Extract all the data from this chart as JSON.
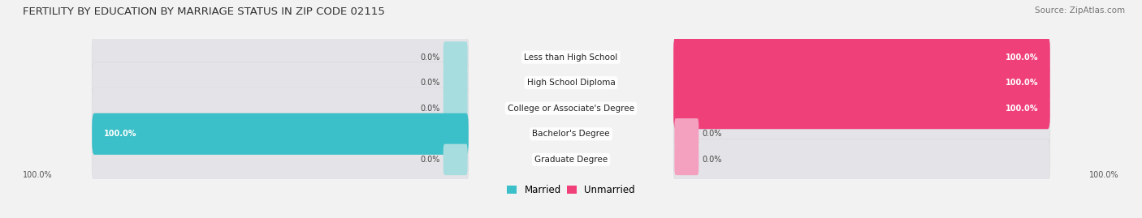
{
  "title": "FERTILITY BY EDUCATION BY MARRIAGE STATUS IN ZIP CODE 02115",
  "source": "Source: ZipAtlas.com",
  "categories": [
    "Less than High School",
    "High School Diploma",
    "College or Associate's Degree",
    "Bachelor's Degree",
    "Graduate Degree"
  ],
  "married": [
    0.0,
    0.0,
    0.0,
    100.0,
    0.0
  ],
  "unmarried": [
    100.0,
    100.0,
    100.0,
    0.0,
    0.0
  ],
  "married_color": "#3bbfc8",
  "married_color_light": "#a8dde0",
  "unmarried_color": "#f0407a",
  "unmarried_color_light": "#f4a0bf",
  "bg_color": "#f2f2f2",
  "bar_bg_color": "#e4e4e8",
  "bar_bg_edge": "#d8d8dc",
  "title_fontsize": 9.5,
  "source_fontsize": 7.5,
  "label_fontsize": 7.5,
  "value_fontsize": 7.0,
  "legend_fontsize": 8.5
}
